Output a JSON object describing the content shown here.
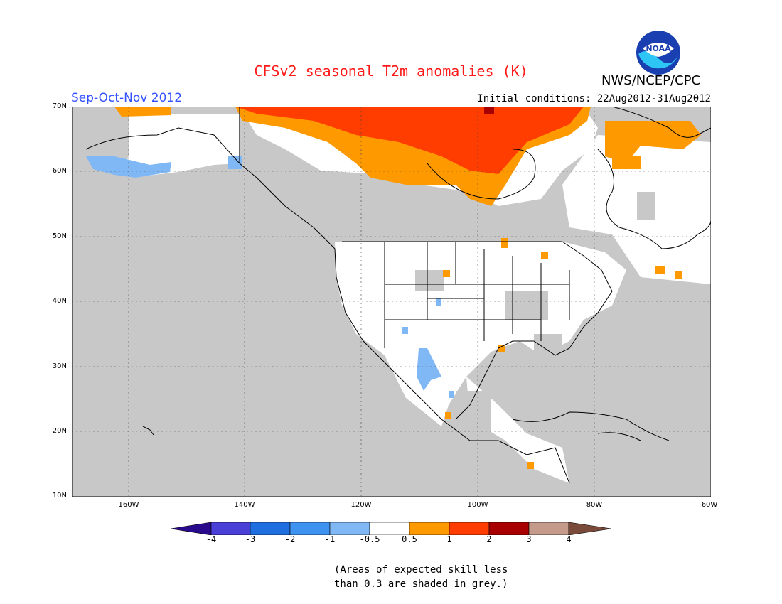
{
  "title": "CFSv2 seasonal T2m anomalies (K)",
  "season": "Sep-Oct-Nov 2012",
  "initial_conditions": "Initial conditions: 22Aug2012-31Aug2012",
  "agency": "NWS/NCEP/CPC",
  "logo_text": "NOAA",
  "lat_labels": [
    "70N",
    "60N",
    "50N",
    "40N",
    "30N",
    "20N",
    "10N"
  ],
  "lon_labels": [
    "160W",
    "140W",
    "120W",
    "100W",
    "80W",
    "60W"
  ],
  "colorbar": {
    "labels": [
      "-4",
      "-3",
      "-2",
      "-1",
      "-0.5",
      "0.5",
      "1",
      "2",
      "3",
      "4"
    ],
    "colors": [
      "#2a0a8c",
      "#4a3fd6",
      "#1f6fe0",
      "#3f93f0",
      "#80b8f5",
      "#ffffff",
      "#ff9900",
      "#ff3d00",
      "#a80000",
      "#c49a8a",
      "#7a4a3a"
    ]
  },
  "note_line1": "(Areas of expected skill less",
  "note_line2": "than 0.3 are shaded in grey.)"
}
